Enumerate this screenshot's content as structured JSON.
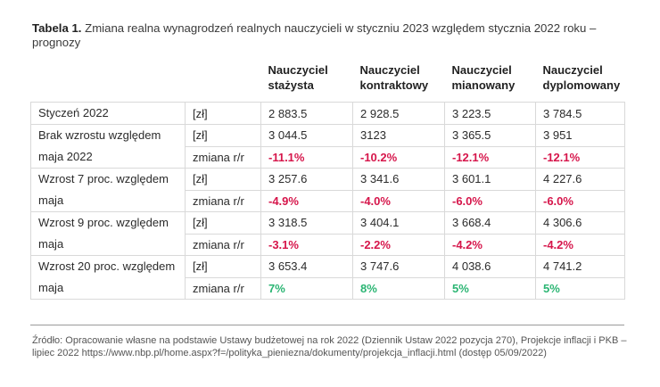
{
  "title": {
    "prefix": "Tabela 1.",
    "text": " Zmiana realna wynagrodzeń realnych nauczycieli w styczniu 2023 względem stycznia 2022 roku – prognozy"
  },
  "headers": [
    {
      "line1": "Nauczyciel",
      "line2": "stażysta"
    },
    {
      "line1": "Nauczyciel",
      "line2": "kontraktowy"
    },
    {
      "line1": "Nauczyciel",
      "line2": "mianowany"
    },
    {
      "line1": "Nauczyciel",
      "line2": "dyplomowany"
    }
  ],
  "rows": {
    "r0": {
      "label": "Styczeń 2022",
      "unit": "[zł]",
      "values": [
        "2 883.5",
        "2 928.5",
        "3 223.5",
        "3 784.5"
      ]
    },
    "r1": {
      "label": "Brak wzrostu względem maja 2022",
      "unit": "[zł]",
      "values": [
        "3 044.5",
        "3123",
        "3 365.5",
        "3 951"
      ],
      "change_label": "zmiana r/r",
      "change": [
        "-11.1%",
        "-10.2%",
        "-12.1%",
        "-12.1%"
      ]
    },
    "r2": {
      "label": "Wzrost 7 proc. względem maja",
      "unit": "[zł]",
      "values": [
        "3 257.6",
        "3 341.6",
        "3 601.1",
        "4 227.6"
      ],
      "change_label": "zmiana r/r",
      "change": [
        "-4.9%",
        "-4.0%",
        "-6.0%",
        "-6.0%"
      ]
    },
    "r3": {
      "label": "Wzrost 9 proc. względem maja",
      "unit": "[zł]",
      "values": [
        "3 318.5",
        "3 404.1",
        "3 668.4",
        "4 306.6"
      ],
      "change_label": "zmiana r/r",
      "change": [
        "-3.1%",
        "-2.2%",
        "-4.2%",
        "-4.2%"
      ]
    },
    "r4": {
      "label": "Wzrost 20 proc. względem maja",
      "unit": "[zł]",
      "values": [
        "3 653.4",
        "3 747.6",
        "4 038.6",
        "4 741.2"
      ],
      "change_label": "zmiana r/r",
      "change": [
        "7%",
        "8%",
        "5%",
        "5%"
      ]
    }
  },
  "colors": {
    "negative": "#d6164b",
    "positive": "#2bb573"
  },
  "source": "Źródło: Opracowanie własne na podstawie Ustawy budżetowej na rok 2022 (Dziennik Ustaw 2022 pozycja 270), Projekcje inflacji i PKB – lipiec 2022 https://www.nbp.pl/home.aspx?f=/polityka_pieniezna/dokumenty/projekcja_inflacji.html (dostęp 05/09/2022)"
}
